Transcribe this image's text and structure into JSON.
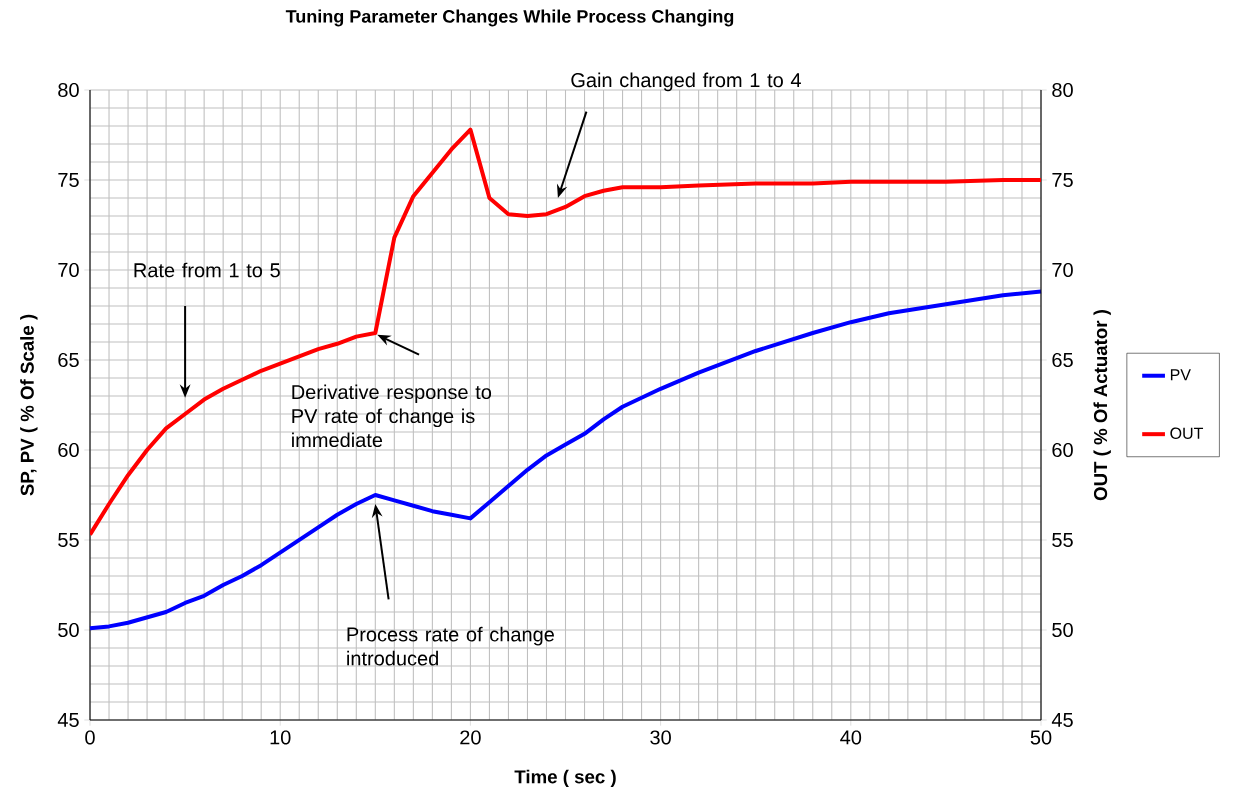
{
  "chart_data": {
    "type": "line",
    "title": "Tuning Parameter Changes While Process Changing",
    "xlabel": "Time ( sec )",
    "ylabel": "SP, PV ( % Of Scale )",
    "y2label": "OUT ( % Of Actuator )",
    "x": [
      0,
      1,
      2,
      3,
      4,
      5,
      6,
      7,
      8,
      9,
      10,
      11,
      12,
      13,
      14,
      15,
      16,
      17,
      18,
      19,
      20,
      21,
      22,
      23,
      24,
      25,
      26,
      27,
      28,
      30,
      32,
      35,
      38,
      40,
      42,
      45,
      48,
      50
    ],
    "series": [
      {
        "name": "PV",
        "color": "#0000ff",
        "values": [
          50.1,
          50.2,
          50.4,
          50.7,
          51.0,
          51.5,
          51.9,
          52.5,
          53.0,
          53.6,
          54.3,
          55.0,
          55.7,
          56.4,
          57.0,
          57.5,
          57.2,
          56.9,
          56.6,
          56.4,
          56.2,
          57.1,
          58.0,
          58.9,
          59.7,
          60.3,
          60.9,
          61.7,
          62.4,
          63.4,
          64.3,
          65.5,
          66.5,
          67.1,
          67.6,
          68.1,
          68.6,
          68.8
        ]
      },
      {
        "name": "OUT",
        "color": "#ff0000",
        "axis": "y2",
        "values": [
          55.3,
          57.0,
          58.6,
          60.0,
          61.2,
          62.0,
          62.8,
          63.4,
          63.9,
          64.4,
          64.8,
          65.2,
          65.6,
          65.9,
          66.3,
          66.5,
          71.8,
          74.1,
          75.4,
          76.7,
          77.8,
          74.0,
          73.1,
          73.0,
          73.1,
          73.5,
          74.1,
          74.4,
          74.6,
          74.6,
          74.7,
          74.8,
          74.8,
          74.9,
          74.9,
          74.9,
          75.0,
          75.0
        ]
      }
    ],
    "xlim": [
      0,
      50
    ],
    "xticks": [
      0,
      10,
      20,
      30,
      40,
      50
    ],
    "ylim": [
      45,
      80
    ],
    "yticks": [
      45,
      50,
      55,
      60,
      65,
      70,
      75,
      80
    ],
    "y2lim": [
      45,
      80
    ],
    "y2ticks": [
      45,
      50,
      55,
      60,
      65,
      70,
      75,
      80
    ],
    "grid": true,
    "legend": "right",
    "annotations": [
      "Rate from 1 to 5",
      "Derivative response to PV rate of change is immediate",
      "Process rate of change introduced",
      "Gain changed from 1 to 4"
    ]
  }
}
